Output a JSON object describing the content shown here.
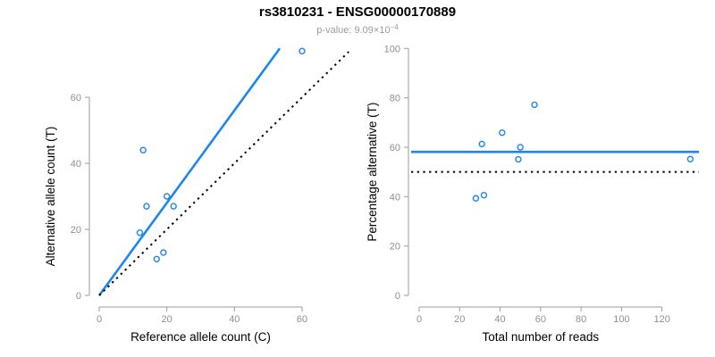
{
  "title": "rs3810231 - ENSG00000170889",
  "subtitle": {
    "text": "p-value: 9.09×10",
    "exponent": "−4"
  },
  "colors": {
    "accent_blue": "#1C86EE",
    "line_black": "#000000",
    "axis_gray": "#9B9B9B",
    "tick_label_gray": "#8F8F8F",
    "label_black": "#000000",
    "background": "#FFFFFF"
  },
  "chart_data": [
    {
      "type": "scatter",
      "panel": "left",
      "xlabel": "Reference allele count (C)",
      "ylabel": "Alternative allele count (T)",
      "xticks": [
        0,
        20,
        40,
        60
      ],
      "yticks": [
        0,
        20,
        40,
        60
      ],
      "xlim": [
        -2.5,
        74
      ],
      "ylim": [
        -2.5,
        76
      ],
      "grid": false,
      "legend": "none",
      "points": [
        [
          12,
          19
        ],
        [
          13,
          44
        ],
        [
          14,
          27
        ],
        [
          17,
          11
        ],
        [
          19,
          13
        ],
        [
          20,
          30
        ],
        [
          22,
          27
        ],
        [
          60,
          74
        ]
      ],
      "lines": [
        {
          "name": "fit-line",
          "kind": "segment",
          "x1": 0,
          "y1": 0,
          "x2": 53.4,
          "y2": 74.8,
          "style": "solid",
          "color": "blue"
        },
        {
          "name": "identity-line",
          "kind": "segment",
          "x1": 0,
          "y1": 0,
          "x2": 73.8,
          "y2": 73.8,
          "style": "dotted",
          "color": "black"
        }
      ]
    },
    {
      "type": "scatter",
      "panel": "right",
      "xlabel": "Total number of reads",
      "ylabel": "Percentage alternative (T)",
      "xticks": [
        0,
        20,
        40,
        60,
        80,
        100,
        120
      ],
      "yticks": [
        0,
        20,
        40,
        60,
        80,
        100
      ],
      "xlim": [
        -4,
        138
      ],
      "ylim": [
        0,
        100
      ],
      "grid": false,
      "legend": "none",
      "points": [
        [
          28,
          39.3
        ],
        [
          31,
          61.3
        ],
        [
          32,
          40.6
        ],
        [
          41,
          65.9
        ],
        [
          49,
          55.1
        ],
        [
          50,
          60.0
        ],
        [
          57,
          77.2
        ],
        [
          134,
          55.2
        ]
      ],
      "lines": [
        {
          "name": "mean-percentage-line",
          "kind": "hline",
          "y": 58.1,
          "style": "solid",
          "color": "blue"
        },
        {
          "name": "fifty-percent-line",
          "kind": "hline",
          "y": 50,
          "style": "dotted",
          "color": "black"
        }
      ]
    }
  ]
}
